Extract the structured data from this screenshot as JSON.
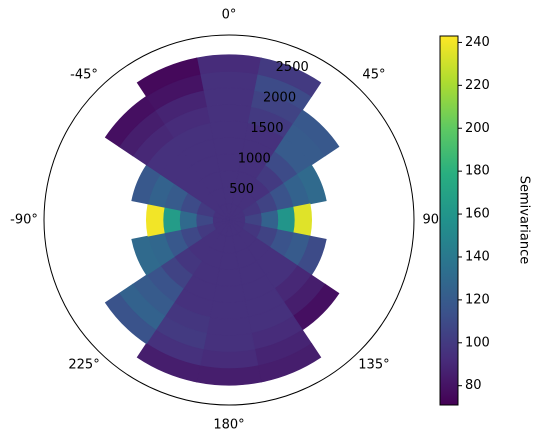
{
  "chart_data": {
    "type": "polar-contour",
    "theta": [
      0,
      22.5,
      45,
      67.5,
      90,
      112.5,
      135,
      157.5,
      180,
      202.5,
      225,
      247.5,
      270,
      292.5,
      315,
      337.5
    ],
    "r": [
      125,
      375,
      625,
      875,
      1125,
      1375,
      1625,
      1875,
      2125,
      2375
    ],
    "values": [
      [
        95,
        95,
        95,
        95,
        95,
        95,
        95,
        95,
        95,
        92
      ],
      [
        95,
        95,
        95,
        95,
        95,
        95,
        100,
        105,
        110,
        100
      ],
      [
        95,
        95,
        95,
        100,
        110,
        120,
        120,
        118,
        null,
        null
      ],
      [
        95,
        98,
        105,
        115,
        125,
        130,
        null,
        null,
        null,
        null
      ],
      [
        95,
        105,
        125,
        160,
        235,
        null,
        null,
        null,
        null,
        null
      ],
      [
        95,
        98,
        105,
        115,
        120,
        110,
        null,
        null,
        null,
        null
      ],
      [
        95,
        95,
        95,
        95,
        95,
        90,
        85,
        78,
        null,
        null
      ],
      [
        95,
        95,
        95,
        95,
        95,
        95,
        95,
        92,
        88,
        85
      ],
      [
        95,
        95,
        95,
        95,
        95,
        95,
        95,
        95,
        92,
        85
      ],
      [
        95,
        95,
        95,
        95,
        95,
        95,
        98,
        100,
        95,
        85
      ],
      [
        95,
        95,
        95,
        98,
        105,
        115,
        120,
        125,
        115,
        null
      ],
      [
        95,
        100,
        108,
        118,
        128,
        130,
        null,
        null,
        null,
        null
      ],
      [
        95,
        108,
        130,
        165,
        240,
        null,
        null,
        null,
        null,
        null
      ],
      [
        95,
        100,
        110,
        120,
        125,
        118,
        null,
        null,
        null,
        null
      ],
      [
        95,
        95,
        95,
        95,
        95,
        95,
        90,
        85,
        78,
        null
      ],
      [
        95,
        95,
        95,
        95,
        95,
        95,
        92,
        88,
        80,
        75
      ]
    ],
    "rlim": [
      0,
      2800
    ],
    "rticks": [
      500,
      1000,
      1500,
      2000,
      2500
    ],
    "thetaticks": [
      {
        "value": 0,
        "label": "0°"
      },
      {
        "value": 45,
        "label": "45°"
      },
      {
        "value": 90,
        "label": "90°"
      },
      {
        "value": 135,
        "label": "135°"
      },
      {
        "value": 180,
        "label": "180°"
      },
      {
        "value": 225,
        "label": "225°"
      },
      {
        "value": -90,
        "label": "-90°"
      },
      {
        "value": -45,
        "label": "-45°"
      }
    ],
    "colorbar": {
      "label": "Semivariance",
      "lim": [
        71,
        243
      ],
      "ticks": [
        80,
        100,
        120,
        140,
        160,
        180,
        200,
        220,
        240
      ],
      "colors": [
        "#440154",
        "#472d7b",
        "#3b528b",
        "#2c728e",
        "#21918c",
        "#28ae80",
        "#5ec962",
        "#addc30",
        "#fde725"
      ]
    }
  }
}
